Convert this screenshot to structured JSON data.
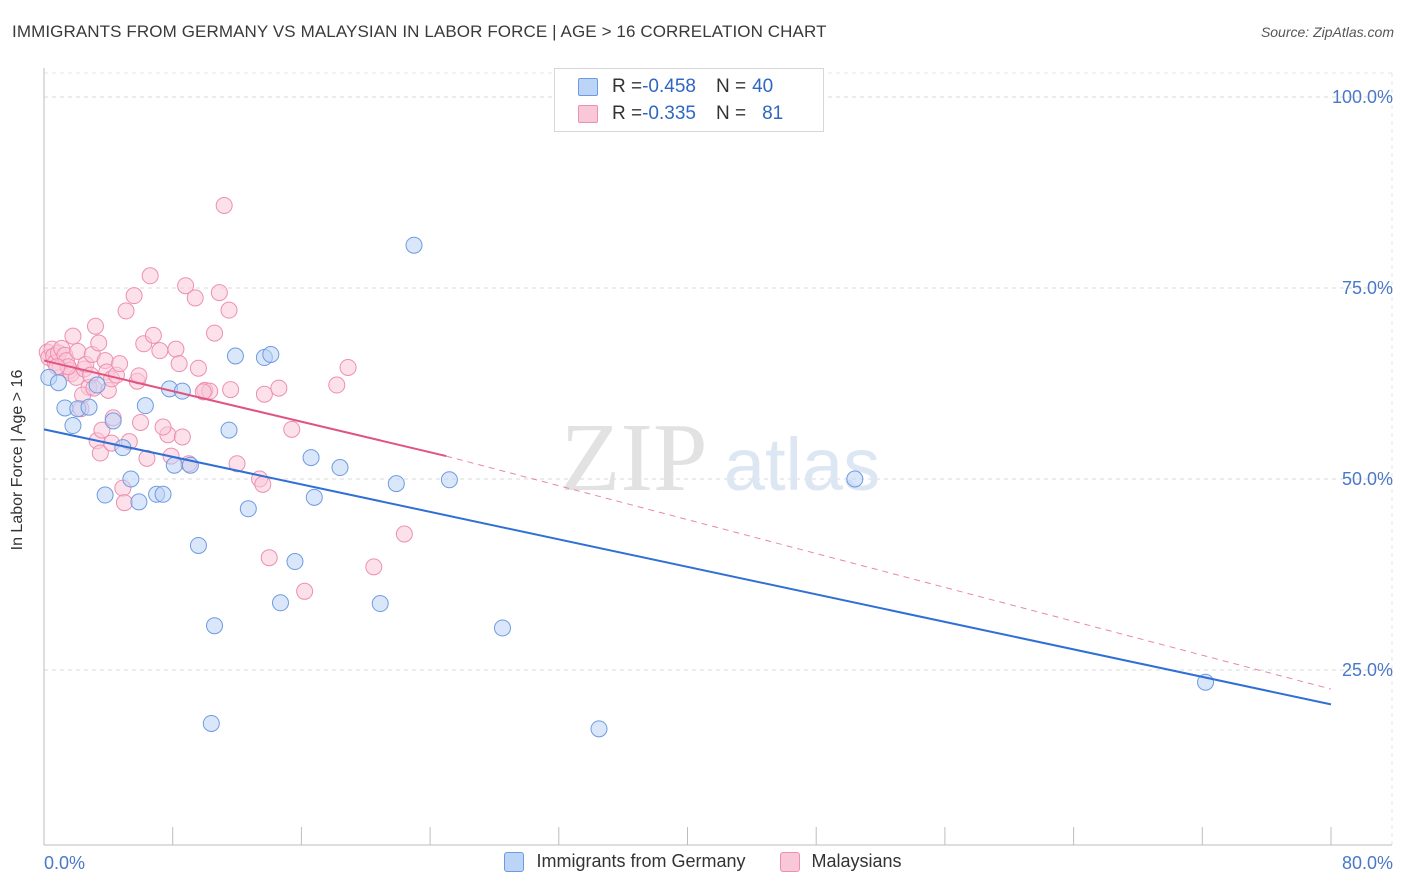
{
  "title": "IMMIGRANTS FROM GERMANY VS MALAYSIAN IN LABOR FORCE | AGE > 16 CORRELATION CHART",
  "source": "Source: ZipAtlas.com",
  "watermark": {
    "zip": "ZIP",
    "atlas": "atlas"
  },
  "stats": [
    {
      "r_label": "R = ",
      "r_value": "-0.458",
      "n_label": "N = ",
      "n_value": "40",
      "fill": "#bcd4f5",
      "stroke": "#6e9be0"
    },
    {
      "r_label": "R = ",
      "r_value": "-0.335",
      "n_label": "N = ",
      "n_value": "81",
      "fill": "#f9c8d8",
      "stroke": "#ee8fb0"
    }
  ],
  "legend": [
    {
      "label": "Immigrants from Germany",
      "fill": "#bcd4f5",
      "stroke": "#6e9be0"
    },
    {
      "label": "Malaysians",
      "fill": "#f9c8d8",
      "stroke": "#ee8fb0"
    }
  ],
  "chart_data": {
    "type": "scatter",
    "title": "IMMIGRANTS FROM GERMANY VS MALAYSIAN IN LABOR FORCE | AGE > 16 CORRELATION CHART",
    "xlabel": "",
    "ylabel": "In Labor Force | Age > 16",
    "xlim": [
      0,
      80
    ],
    "ylim": [
      0,
      105
    ],
    "x_tick_labels": [
      "0.0%",
      "80.0%"
    ],
    "y_ticks": [
      25,
      50,
      75,
      100
    ],
    "y_tick_labels": [
      "25.0%",
      "50.0%",
      "75.0%",
      "100.0%"
    ],
    "grid": true,
    "legend_position": "bottom",
    "series": [
      {
        "name": "Immigrants from Germany",
        "color": "#6e9be0",
        "fill": "#bcd4f5",
        "line_color": "#2f6fd6",
        "trend": {
          "x": [
            0,
            80
          ],
          "y": [
            56.5,
            20.5
          ]
        },
        "points": [
          [
            0.3,
            63.3
          ],
          [
            0.9,
            62.6
          ],
          [
            1.3,
            59.3
          ],
          [
            1.8,
            57.0
          ],
          [
            2.1,
            59.2
          ],
          [
            2.8,
            59.4
          ],
          [
            3.3,
            62.3
          ],
          [
            3.8,
            47.9
          ],
          [
            4.3,
            57.6
          ],
          [
            4.9,
            54.1
          ],
          [
            5.4,
            50.0
          ],
          [
            5.9,
            47.0
          ],
          [
            6.3,
            59.6
          ],
          [
            7.0,
            48.0
          ],
          [
            7.4,
            48.0
          ],
          [
            7.8,
            61.8
          ],
          [
            8.1,
            51.8
          ],
          [
            8.6,
            61.5
          ],
          [
            9.1,
            51.8
          ],
          [
            9.6,
            41.3
          ],
          [
            10.4,
            18.0
          ],
          [
            10.6,
            30.8
          ],
          [
            11.5,
            56.4
          ],
          [
            11.9,
            66.1
          ],
          [
            12.7,
            46.1
          ],
          [
            13.7,
            65.9
          ],
          [
            14.1,
            66.3
          ],
          [
            14.7,
            33.8
          ],
          [
            15.6,
            39.2
          ],
          [
            16.6,
            52.8
          ],
          [
            16.8,
            47.6
          ],
          [
            18.4,
            51.5
          ],
          [
            20.9,
            33.7
          ],
          [
            21.9,
            49.4
          ],
          [
            23.0,
            80.6
          ],
          [
            25.2,
            49.9
          ],
          [
            28.5,
            30.5
          ],
          [
            34.5,
            17.3
          ],
          [
            50.4,
            50.0
          ],
          [
            72.2,
            23.4
          ]
        ]
      },
      {
        "name": "Malaysians",
        "color": "#ee8fb0",
        "fill": "#f9c8d8",
        "line_color": "#e0557f",
        "trend": {
          "x": [
            0,
            25.0
          ],
          "y": [
            65.5,
            53.0
          ]
        },
        "trend_dashed": {
          "x": [
            25.0,
            80
          ],
          "y": [
            53.0,
            22.5
          ]
        },
        "points": [
          [
            0.2,
            66.6
          ],
          [
            0.3,
            65.9
          ],
          [
            0.5,
            67.0
          ],
          [
            0.6,
            66.1
          ],
          [
            0.7,
            65.2
          ],
          [
            0.9,
            66.5
          ],
          [
            1.0,
            64.6
          ],
          [
            1.1,
            67.1
          ],
          [
            1.3,
            66.2
          ],
          [
            1.4,
            65.5
          ],
          [
            1.6,
            64.2
          ],
          [
            1.7,
            63.8
          ],
          [
            1.8,
            68.7
          ],
          [
            2.0,
            63.3
          ],
          [
            2.1,
            66.7
          ],
          [
            2.3,
            59.2
          ],
          [
            2.5,
            64.4
          ],
          [
            2.6,
            65.0
          ],
          [
            2.8,
            62.0
          ],
          [
            2.9,
            63.6
          ],
          [
            3.0,
            66.3
          ],
          [
            3.2,
            70.0
          ],
          [
            3.3,
            55.0
          ],
          [
            3.4,
            67.8
          ],
          [
            3.5,
            53.4
          ],
          [
            3.6,
            56.4
          ],
          [
            3.8,
            65.5
          ],
          [
            3.9,
            64.0
          ],
          [
            4.0,
            61.6
          ],
          [
            4.2,
            63.1
          ],
          [
            4.3,
            58.0
          ],
          [
            4.5,
            63.6
          ],
          [
            4.7,
            65.1
          ],
          [
            4.9,
            48.8
          ],
          [
            5.0,
            46.9
          ],
          [
            5.1,
            72.0
          ],
          [
            5.3,
            54.9
          ],
          [
            5.6,
            74.0
          ],
          [
            5.8,
            62.8
          ],
          [
            6.0,
            57.4
          ],
          [
            6.2,
            67.7
          ],
          [
            6.4,
            52.7
          ],
          [
            6.6,
            76.6
          ],
          [
            6.8,
            68.8
          ],
          [
            7.2,
            66.8
          ],
          [
            7.7,
            55.8
          ],
          [
            7.9,
            53.0
          ],
          [
            8.2,
            67.0
          ],
          [
            8.4,
            65.1
          ],
          [
            8.6,
            55.5
          ],
          [
            8.8,
            75.3
          ],
          [
            9.0,
            52.0
          ],
          [
            9.4,
            73.7
          ],
          [
            9.6,
            64.5
          ],
          [
            10.0,
            61.6
          ],
          [
            10.3,
            61.5
          ],
          [
            10.6,
            69.1
          ],
          [
            10.9,
            74.4
          ],
          [
            11.2,
            85.8
          ],
          [
            11.5,
            72.1
          ],
          [
            11.6,
            61.7
          ],
          [
            12.0,
            52.0
          ],
          [
            13.4,
            50.0
          ],
          [
            13.6,
            49.3
          ],
          [
            13.7,
            61.1
          ],
          [
            14.0,
            39.7
          ],
          [
            14.6,
            61.9
          ],
          [
            15.4,
            56.5
          ],
          [
            16.2,
            35.3
          ],
          [
            18.2,
            62.3
          ],
          [
            18.9,
            64.6
          ],
          [
            20.5,
            38.5
          ],
          [
            22.4,
            42.8
          ],
          [
            7.4,
            56.8
          ],
          [
            9.9,
            61.4
          ],
          [
            4.2,
            54.7
          ],
          [
            2.4,
            61.0
          ],
          [
            1.5,
            64.7
          ],
          [
            3.1,
            61.9
          ],
          [
            0.8,
            64.7
          ],
          [
            5.9,
            63.5
          ]
        ]
      }
    ]
  }
}
